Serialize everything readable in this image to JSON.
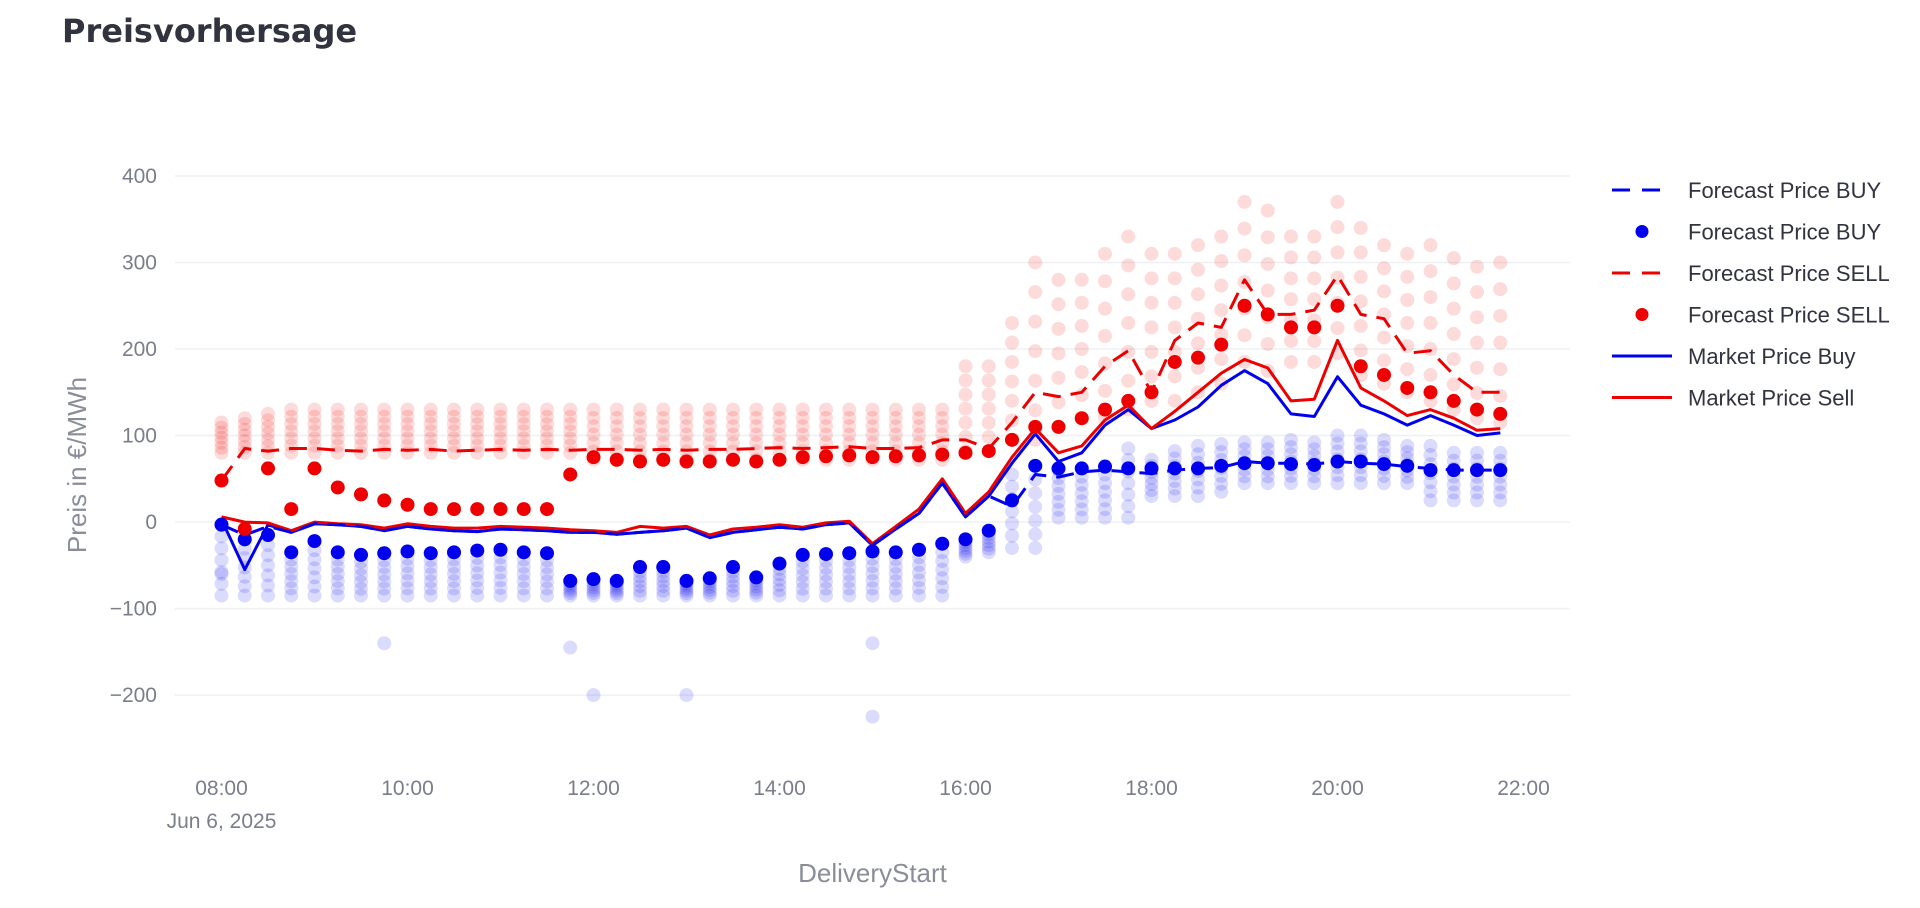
{
  "page": {
    "title": "Preisvorhersage"
  },
  "colors": {
    "buy": "#0000ee",
    "sell": "#ee0000",
    "grid": "#eef0f3"
  },
  "chart_data": {
    "type": "line",
    "xlabel": "DeliveryStart",
    "ylabel": "Preis in €/MWh",
    "x_date_label": "Jun 6, 2025",
    "xlim": [
      7.5,
      22.5
    ],
    "ylim": [
      -275,
      430
    ],
    "y_ticks": [
      {
        "value": -200,
        "label": "−200"
      },
      {
        "value": -100,
        "label": "−100"
      },
      {
        "value": 0,
        "label": "0"
      },
      {
        "value": 100,
        "label": "100"
      },
      {
        "value": 200,
        "label": "200"
      },
      {
        "value": 300,
        "label": "300"
      },
      {
        "value": 400,
        "label": "400"
      }
    ],
    "x_ticks": [
      {
        "value": 8,
        "label": "08:00"
      },
      {
        "value": 10,
        "label": "10:00"
      },
      {
        "value": 12,
        "label": "12:00"
      },
      {
        "value": 14,
        "label": "14:00"
      },
      {
        "value": 16,
        "label": "16:00"
      },
      {
        "value": 18,
        "label": "18:00"
      },
      {
        "value": 20,
        "label": "20:00"
      },
      {
        "value": 22,
        "label": "22:00"
      }
    ],
    "grid": true,
    "legend_position": "right",
    "legend": [
      {
        "label": "Forecast Price BUY",
        "style": "dash",
        "color": "#0000ee"
      },
      {
        "label": "Forecast Price BUY",
        "style": "dot",
        "color": "#0000ee"
      },
      {
        "label": "Forecast Price SELL",
        "style": "dash",
        "color": "#ee0000"
      },
      {
        "label": "Forecast Price SELL",
        "style": "dot",
        "color": "#ee0000"
      },
      {
        "label": "Market Price Buy",
        "style": "line",
        "color": "#0000ee"
      },
      {
        "label": "Market Price Sell",
        "style": "line",
        "color": "#ee0000"
      }
    ],
    "x": [
      8.0,
      8.25,
      8.5,
      8.75,
      9.0,
      9.25,
      9.5,
      9.75,
      10.0,
      10.25,
      10.5,
      10.75,
      11.0,
      11.25,
      11.5,
      11.75,
      12.0,
      12.25,
      12.5,
      12.75,
      13.0,
      13.25,
      13.5,
      13.75,
      14.0,
      14.25,
      14.5,
      14.75,
      15.0,
      15.25,
      15.5,
      15.75,
      16.0,
      16.25,
      16.5,
      16.75,
      17.0,
      17.25,
      17.5,
      17.75,
      18.0,
      18.25,
      18.5,
      18.75,
      19.0,
      19.25,
      19.5,
      19.75,
      20.0,
      20.25,
      20.5,
      20.75,
      21.0,
      21.25,
      21.5,
      21.75
    ],
    "series": [
      {
        "name": "Market Price Buy",
        "style": "line",
        "color": "#0000ee",
        "values": [
          3,
          -55,
          -3,
          -12,
          -2,
          -3,
          -5,
          -10,
          -5,
          -8,
          -10,
          -11,
          -8,
          -9,
          -10,
          -12,
          -12,
          -14,
          -12,
          -10,
          -7,
          -18,
          -12,
          -9,
          -6,
          -8,
          -3,
          -1,
          -27,
          -8,
          10,
          45,
          6,
          30,
          68,
          102,
          70,
          80,
          112,
          130,
          108,
          118,
          133,
          158,
          175,
          160,
          125,
          122,
          168,
          135,
          125,
          112,
          123,
          112,
          100,
          103
        ]
      },
      {
        "name": "Market Price Sell",
        "style": "line",
        "color": "#ee0000",
        "values": [
          6,
          0,
          -1,
          -10,
          0,
          -2,
          -3,
          -7,
          -2,
          -5,
          -7,
          -7,
          -5,
          -6,
          -7,
          -9,
          -10,
          -12,
          -5,
          -7,
          -5,
          -15,
          -8,
          -6,
          -3,
          -6,
          -1,
          1,
          -25,
          -5,
          15,
          50,
          10,
          35,
          75,
          108,
          80,
          88,
          118,
          135,
          108,
          128,
          150,
          172,
          188,
          178,
          140,
          142,
          210,
          155,
          140,
          123,
          130,
          120,
          106,
          108
        ]
      },
      {
        "name": "Forecast Price BUY",
        "style": "dash",
        "color": "#0000ee",
        "values": [
          -3,
          -15,
          -5,
          -12,
          -2,
          -3,
          -5,
          -10,
          -5,
          -8,
          -10,
          -11,
          -8,
          -9,
          -10,
          -12,
          -12,
          -14,
          -12,
          -10,
          -7,
          -18,
          -12,
          -9,
          -6,
          -8,
          -3,
          -1,
          -27,
          -8,
          10,
          45,
          6,
          30,
          18,
          55,
          52,
          58,
          60,
          58,
          56,
          60,
          62,
          63,
          70,
          68,
          68,
          67,
          70,
          68,
          67,
          64,
          62,
          60,
          60,
          60
        ]
      },
      {
        "name": "Forecast Price SELL",
        "style": "dash",
        "color": "#ee0000",
        "values": [
          48,
          85,
          82,
          85,
          85,
          83,
          82,
          84,
          83,
          84,
          82,
          83,
          84,
          83,
          84,
          83,
          84,
          84,
          83,
          84,
          83,
          84,
          84,
          85,
          86,
          85,
          86,
          87,
          85,
          85,
          86,
          95,
          95,
          85,
          115,
          150,
          145,
          150,
          180,
          198,
          150,
          210,
          230,
          225,
          280,
          240,
          240,
          245,
          285,
          240,
          235,
          195,
          198,
          170,
          150,
          150
        ]
      },
      {
        "name": "Forecast Price BUY",
        "style": "dots",
        "color": "#0000ee",
        "values": [
          -3,
          -20,
          -15,
          -35,
          -22,
          -35,
          -38,
          -36,
          -34,
          -36,
          -35,
          -33,
          -32,
          -35,
          -36,
          -68,
          -66,
          -68,
          -52,
          -52,
          -68,
          -65,
          -52,
          -64,
          -48,
          -38,
          -37,
          -36,
          -34,
          -35,
          -32,
          -25,
          -20,
          -10,
          25,
          65,
          62,
          62,
          64,
          62,
          62,
          62,
          62,
          65,
          68,
          68,
          67,
          66,
          70,
          70,
          67,
          65,
          60,
          60,
          60,
          60
        ],
        "low": [
          -85,
          -85,
          -85,
          -85,
          -85,
          -85,
          -85,
          -85,
          -85,
          -85,
          -85,
          -85,
          -85,
          -85,
          -85,
          -85,
          -85,
          -85,
          -85,
          -85,
          -85,
          -85,
          -85,
          -85,
          -85,
          -85,
          -85,
          -85,
          -85,
          -85,
          -85,
          -85,
          -40,
          -35,
          -30,
          -30,
          5,
          5,
          5,
          5,
          30,
          30,
          30,
          35,
          45,
          45,
          45,
          45,
          45,
          45,
          45,
          45,
          25,
          25,
          25,
          25
        ],
        "high": [
          -3,
          -20,
          -15,
          -35,
          -22,
          -35,
          -38,
          -36,
          -34,
          -36,
          -35,
          -33,
          -32,
          -35,
          -36,
          -68,
          -66,
          -68,
          -52,
          -52,
          -68,
          -65,
          -52,
          -64,
          -48,
          -38,
          -37,
          -36,
          -34,
          -35,
          -32,
          -25,
          -20,
          -10,
          55,
          65,
          60,
          62,
          65,
          85,
          72,
          82,
          88,
          90,
          92,
          92,
          95,
          92,
          100,
          100,
          95,
          88,
          88,
          80,
          80,
          80
        ]
      },
      {
        "name": "Forecast Price SELL",
        "style": "dots",
        "color": "#ee0000",
        "values": [
          48,
          -8,
          62,
          15,
          62,
          40,
          32,
          25,
          20,
          15,
          15,
          15,
          15,
          15,
          15,
          55,
          75,
          72,
          70,
          72,
          70,
          70,
          72,
          70,
          72,
          75,
          76,
          77,
          75,
          76,
          77,
          78,
          80,
          82,
          95,
          110,
          110,
          120,
          130,
          140,
          150,
          185,
          190,
          205,
          250,
          240,
          225,
          225,
          250,
          180,
          170,
          155,
          150,
          140,
          130,
          125
        ],
        "low": [
          80,
          80,
          80,
          80,
          80,
          80,
          80,
          80,
          80,
          80,
          80,
          80,
          80,
          80,
          80,
          80,
          72,
          72,
          72,
          72,
          72,
          72,
          72,
          72,
          72,
          72,
          72,
          72,
          72,
          72,
          72,
          72,
          82,
          82,
          95,
          95,
          110,
          120,
          120,
          130,
          140,
          140,
          150,
          160,
          185,
          175,
          185,
          185,
          195,
          170,
          160,
          150,
          140,
          130,
          120,
          115
        ],
        "high": [
          115,
          120,
          125,
          130,
          130,
          130,
          130,
          130,
          130,
          130,
          130,
          130,
          130,
          130,
          130,
          130,
          130,
          130,
          130,
          130,
          130,
          130,
          130,
          130,
          130,
          130,
          130,
          130,
          130,
          130,
          130,
          130,
          180,
          180,
          230,
          300,
          280,
          280,
          310,
          330,
          310,
          310,
          320,
          330,
          370,
          360,
          330,
          330,
          370,
          340,
          320,
          310,
          320,
          305,
          295,
          300
        ]
      }
    ],
    "outliers_buy": [
      {
        "x": 8.0,
        "y": -60
      },
      {
        "x": 9.75,
        "y": -140
      },
      {
        "x": 11.75,
        "y": -145
      },
      {
        "x": 12.0,
        "y": -200
      },
      {
        "x": 13.0,
        "y": -200
      },
      {
        "x": 15.0,
        "y": -140
      },
      {
        "x": 15.0,
        "y": -225
      }
    ]
  }
}
